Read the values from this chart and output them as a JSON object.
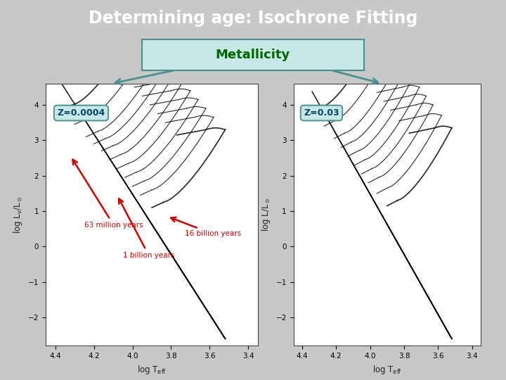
{
  "title": "Determining age: Isochrone Fitting",
  "title_bg": "#800080",
  "title_color": "#ffffff",
  "metallicity_label": "Metallicity",
  "metallicity_box_color": "#c8e8e8",
  "metallicity_text_color": "#006600",
  "metallicity_border_color": "#4a9090",
  "left_label": "Z=0.0004",
  "right_label": "Z=0.03",
  "label_box_color": "#c8e8e8",
  "label_text_color": "#004466",
  "label_border_color": "#4a9090",
  "annotation_color": "#cc0000",
  "teal_arrow_color": "#4a9090",
  "left_ylabel": "log L/L☉",
  "right_ylabel": "log L/L☉",
  "left_xlabel": "log T_eff",
  "right_xlabel": "log T_eff",
  "ylim": [
    -2.8,
    4.6
  ],
  "xlim": [
    4.45,
    3.35
  ],
  "bg_color": "#d0d0d0",
  "plot_bg": "#ffffff",
  "slide_bg": "#c8c8c8"
}
